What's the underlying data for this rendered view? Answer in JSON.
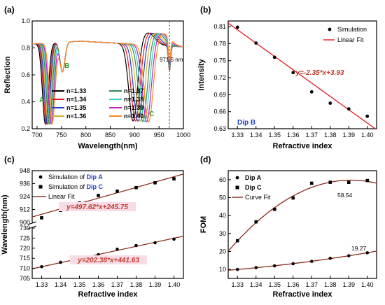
{
  "colors": {
    "axis": "#000000",
    "fit_red": "#e41a1c",
    "fit_brown": "#8b2a1a",
    "dip_blue": "#1f3fc8",
    "green_label": "#2ca02c",
    "marker": "#000000",
    "eq_red": "#c0392b",
    "highlight_pink": "#f7dce6"
  },
  "chart_data": [
    {
      "id": "a",
      "panel_label": "(a)",
      "type": "line",
      "xlabel": "Wavelength(nm)",
      "ylabel": "Reflection",
      "xlim": [
        690,
        1000
      ],
      "ylim": [
        0.2,
        1.0
      ],
      "xticks": [
        700,
        750,
        800,
        850,
        900,
        950,
        1000
      ],
      "yticks": [
        0.2,
        0.4,
        0.6,
        0.8,
        1.0
      ],
      "xticklabels": [
        "700",
        "750",
        "800",
        "850",
        "900",
        "950",
        "1000"
      ],
      "yticklabels": [
        "0.2",
        "0.4",
        "0.6",
        "0.8",
        "1.0"
      ],
      "series": [
        {
          "name": "n=1.33",
          "color": "#000000",
          "dipA": 717,
          "dipC": 897
        },
        {
          "name": "n=1.34",
          "color": "#e41a1c",
          "dipA": 719,
          "dipC": 902
        },
        {
          "name": "n=1.35",
          "color": "#1f3fc8",
          "dipA": 721,
          "dipC": 907
        },
        {
          "name": "n=1.36",
          "color": "#d4ad2c",
          "dipA": 723,
          "dipC": 912
        },
        {
          "name": "n=1.37",
          "color": "#2e8b57",
          "dipA": 725,
          "dipC": 917
        },
        {
          "name": "n=1.38",
          "color": "#2fd0c8",
          "dipA": 727,
          "dipC": 921
        },
        {
          "name": "n=1.39",
          "color": "#c41ec4",
          "dipA": 729,
          "dipC": 925
        },
        {
          "name": "n=1.40",
          "color": "#ff8c1a",
          "dipA": 731,
          "dipC": 929
        }
      ],
      "annotations": [
        {
          "text": "A",
          "color": "#2ca02c"
        },
        {
          "text": "B",
          "color": "#2ca02c"
        },
        {
          "text": "C",
          "color": "#2ca02c"
        },
        {
          "text": "971.5 nm",
          "color": "#000000"
        }
      ],
      "marker_line_x": 971.5
    },
    {
      "id": "b",
      "panel_label": "(b)",
      "type": "scatter",
      "xlabel": "Refractive index",
      "ylabel": "Intensity",
      "xlim": [
        1.325,
        1.405
      ],
      "ylim": [
        0.63,
        0.82
      ],
      "xticks": [
        1.33,
        1.34,
        1.35,
        1.36,
        1.37,
        1.38,
        1.39,
        1.4
      ],
      "yticks": [
        0.63,
        0.66,
        0.69,
        0.72,
        0.75,
        0.78,
        0.81
      ],
      "xticklabels": [
        "1.33",
        "1.34",
        "1.35",
        "1.36",
        "1.37",
        "1.38",
        "1.39",
        "1.40"
      ],
      "yticklabels": [
        "0.63",
        "0.66",
        "0.69",
        "0.72",
        "0.75",
        "0.78",
        "0.81"
      ],
      "x": [
        1.33,
        1.34,
        1.35,
        1.36,
        1.37,
        1.38,
        1.39,
        1.4
      ],
      "series": [
        {
          "name": "Simulation",
          "kind": "points",
          "values": [
            0.809,
            0.781,
            0.756,
            0.729,
            0.695,
            0.675,
            0.665,
            0.652
          ]
        },
        {
          "name": "Linear Fit",
          "kind": "fit",
          "slope": -2.35,
          "intercept": 3.93
        }
      ],
      "legend_position": "top-right",
      "dip_label": "Dip B",
      "equation": "y=-2.35*x+3.93"
    },
    {
      "id": "c",
      "panel_label": "(c)",
      "type": "scatter",
      "xlabel": "Refractive index",
      "ylabel": "Wavelength(nm)",
      "xlim": [
        1.325,
        1.405
      ],
      "broken_y": true,
      "ylim_upper": [
        900,
        948
      ],
      "ylim_lower": [
        705,
        730
      ],
      "yticks_upper": [
        900,
        912,
        924,
        936,
        948
      ],
      "yticks_lower": [
        705,
        710,
        715,
        720,
        725,
        730
      ],
      "yticklabels_upper": [
        "900",
        "912",
        "924",
        "936",
        "948"
      ],
      "yticklabels_lower": [
        "705",
        "710",
        "715",
        "720",
        "725",
        "730"
      ],
      "xticks": [
        1.33,
        1.34,
        1.35,
        1.36,
        1.37,
        1.38,
        1.39,
        1.4
      ],
      "xticklabels": [
        "1.33",
        "1.34",
        "1.35",
        "1.36",
        "1.37",
        "1.38",
        "1.39",
        "1.40"
      ],
      "x": [
        1.33,
        1.34,
        1.35,
        1.36,
        1.37,
        1.38,
        1.39,
        1.4
      ],
      "series": [
        {
          "name": "Simulation of Dip A",
          "kind": "points",
          "marker": "circle",
          "values": [
            710.8,
            713.0,
            715.0,
            716.8,
            719.5,
            721.3,
            722.7,
            724.5
          ]
        },
        {
          "name": "Simulation of Dip C",
          "kind": "points",
          "marker": "square",
          "values": [
            904.3,
            911.2,
            918.0,
            925.0,
            929.0,
            932.3,
            936.8,
            940.5
          ]
        },
        {
          "name": "Linear Fit",
          "kind": "fit",
          "fits": [
            {
              "slope": 497.62,
              "intercept": 245.75
            },
            {
              "slope": 202.38,
              "intercept": 441.63
            }
          ]
        }
      ],
      "legend_prefix": "Simulation of ",
      "legend_dipA": "Dip A",
      "legend_dipC": "Dip C",
      "legend_fit": "Linear Fit",
      "equation_upper": "y=497.62*x+245.75",
      "equation_lower": "y=202.38*x+441.63"
    },
    {
      "id": "d",
      "panel_label": "(d)",
      "type": "scatter",
      "xlabel": "Refractive index",
      "ylabel": "FOM",
      "xlim": [
        1.325,
        1.405
      ],
      "ylim": [
        5,
        65
      ],
      "xticks": [
        1.33,
        1.34,
        1.35,
        1.36,
        1.37,
        1.38,
        1.39,
        1.4
      ],
      "yticks": [
        10,
        20,
        30,
        40,
        50,
        60
      ],
      "xticklabels": [
        "1.33",
        "1.34",
        "1.35",
        "1.36",
        "1.37",
        "1.38",
        "1.39",
        "1.40"
      ],
      "yticklabels": [
        "10",
        "20",
        "30",
        "40",
        "50",
        "60"
      ],
      "x": [
        1.33,
        1.34,
        1.35,
        1.36,
        1.37,
        1.38,
        1.39,
        1.4
      ],
      "series": [
        {
          "name": "Dip A",
          "kind": "points",
          "marker": "circle",
          "values": [
            10.0,
            11.0,
            12.0,
            13.2,
            14.5,
            16.2,
            17.6,
            19.27
          ]
        },
        {
          "name": "Dip C",
          "kind": "points",
          "marker": "square",
          "values": [
            26.0,
            36.5,
            43.5,
            49.8,
            58.0,
            58.54,
            58.5,
            59.5
          ]
        },
        {
          "name": "Curve Fit",
          "kind": "fit"
        }
      ],
      "legend_position": "top-left",
      "value_labels": [
        "58.54",
        "19.27"
      ]
    }
  ]
}
